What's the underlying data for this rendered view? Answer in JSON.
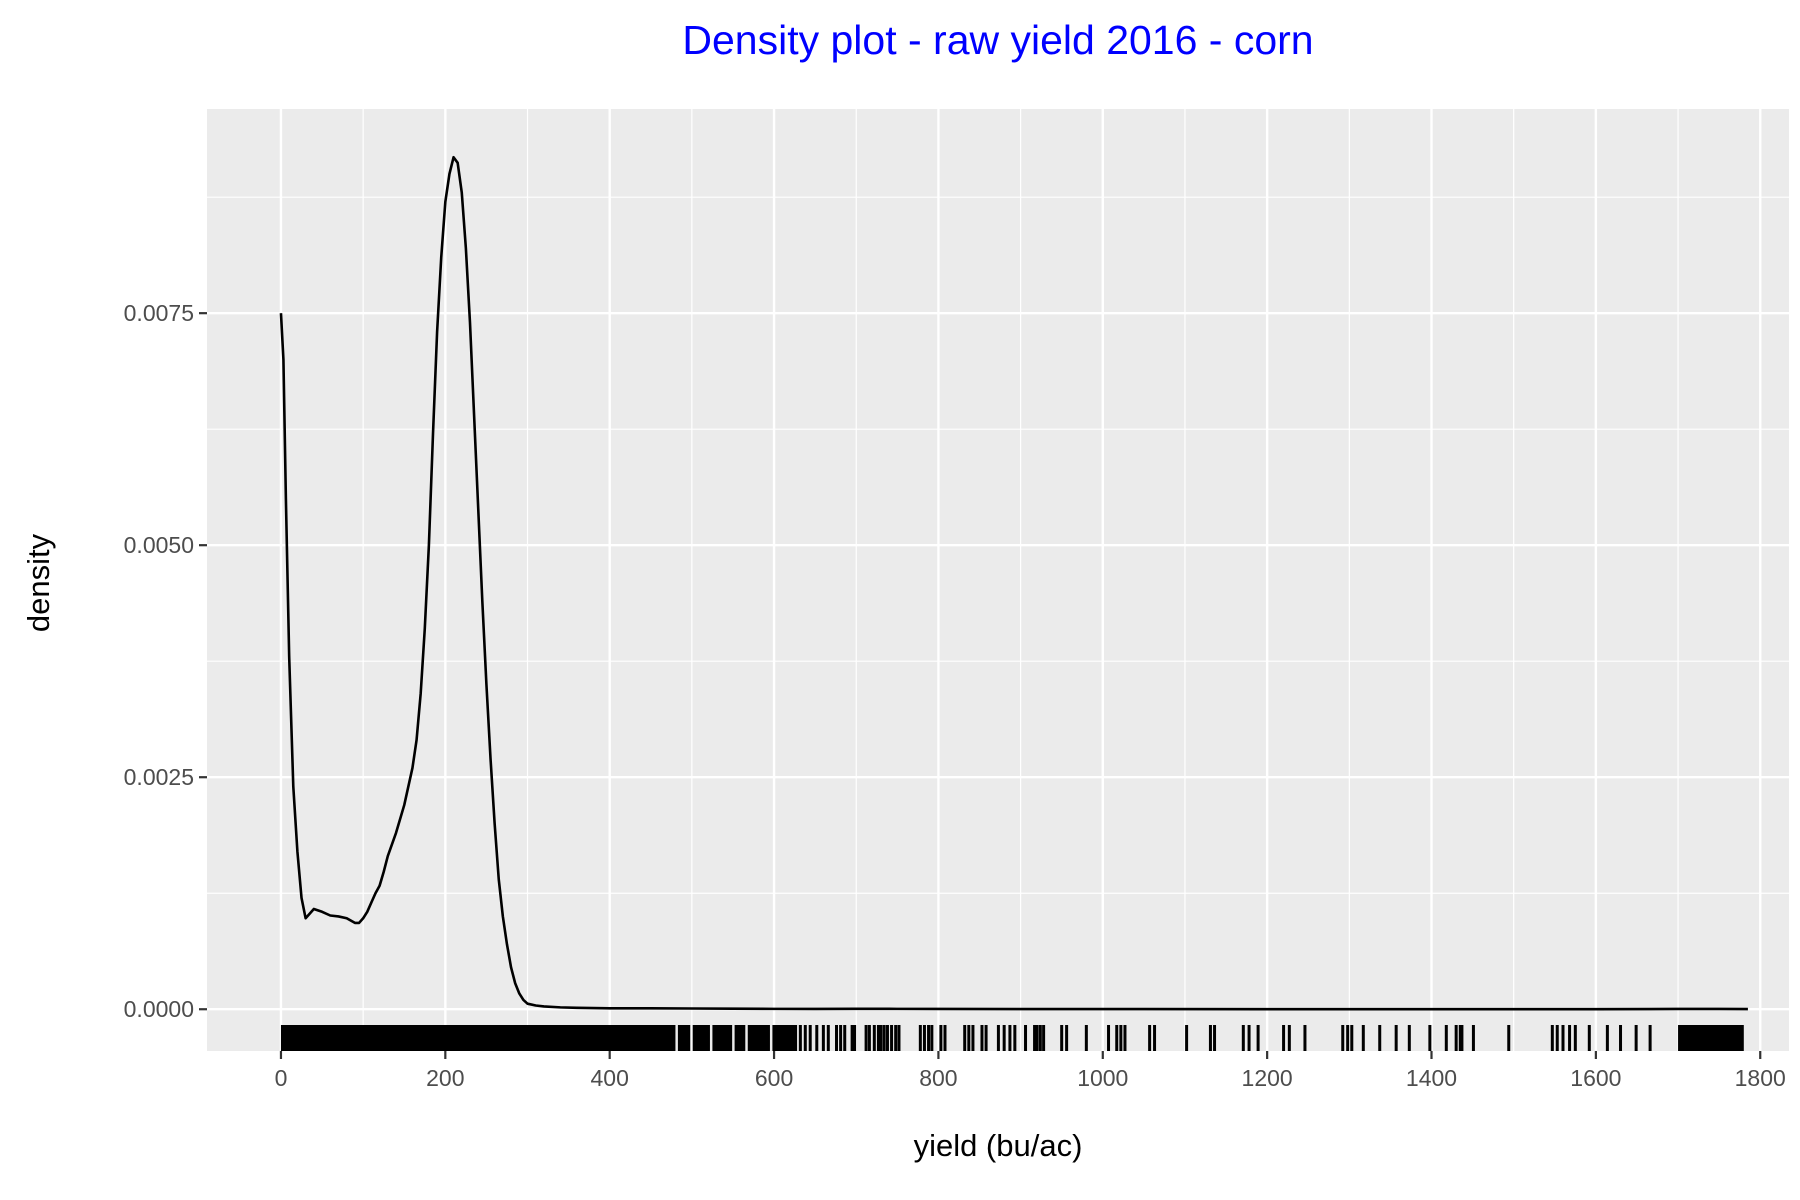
{
  "chart_data": {
    "type": "line",
    "title": "Density plot - raw yield 2016 - corn",
    "xlabel": "yield (bu/ac)",
    "ylabel": "density",
    "xlim": [
      -90,
      1835
    ],
    "ylim": [
      -0.00045,
      0.0097
    ],
    "x_ticks": [
      0,
      200,
      400,
      600,
      800,
      1000,
      1200,
      1400,
      1600,
      1800
    ],
    "x_tick_labels": [
      "0",
      "200",
      "400",
      "600",
      "800",
      "1000",
      "1200",
      "1400",
      "1600",
      "1800"
    ],
    "y_ticks": [
      0,
      0.0025,
      0.005,
      0.0075
    ],
    "y_tick_labels": [
      "0.0000",
      "0.0025",
      "0.0050",
      "0.0075"
    ],
    "y_minor_ticks": [
      0.00125,
      0.00375,
      0.00625,
      0.00875
    ],
    "grid": true,
    "colors": {
      "title": "#0000ff",
      "panel_background": "#ebebeb",
      "grid": "#ffffff",
      "line": "#000000",
      "rug": "#000000"
    },
    "series": [
      {
        "x": [
          0,
          3,
          6,
          10,
          15,
          20,
          25,
          30,
          35,
          40,
          50,
          60,
          70,
          80,
          90,
          95,
          100,
          105,
          110,
          115,
          120,
          125,
          130,
          140,
          150,
          160,
          165,
          170,
          175,
          180,
          185,
          190,
          195,
          200,
          205,
          210,
          215,
          220,
          225,
          230,
          235,
          240,
          245,
          250,
          255,
          260,
          265,
          270,
          275,
          280,
          285,
          290,
          295,
          300,
          310,
          320,
          340,
          360,
          400,
          450,
          500,
          550,
          600,
          650,
          700,
          750,
          800,
          900,
          1000,
          1200,
          1400,
          1600,
          1700,
          1750,
          1785
        ],
        "y": [
          0.0075,
          0.007,
          0.0055,
          0.0038,
          0.0024,
          0.0017,
          0.0012,
          0.00098,
          0.00103,
          0.00108,
          0.00105,
          0.00101,
          0.001,
          0.00098,
          0.00093,
          0.00093,
          0.00098,
          0.00105,
          0.00115,
          0.00125,
          0.00133,
          0.00148,
          0.00165,
          0.0019,
          0.0022,
          0.0026,
          0.0029,
          0.0034,
          0.0041,
          0.005,
          0.0062,
          0.0073,
          0.0081,
          0.0087,
          0.009,
          0.00918,
          0.00912,
          0.0088,
          0.0082,
          0.0074,
          0.0064,
          0.0054,
          0.0044,
          0.0035,
          0.0027,
          0.002,
          0.0014,
          0.001,
          0.0007,
          0.00045,
          0.00028,
          0.00017,
          0.0001,
          6e-05,
          4e-05,
          3e-05,
          2e-05,
          1.5e-05,
          1e-05,
          1e-05,
          8e-06,
          6e-06,
          4e-06,
          3e-06,
          5e-06,
          4e-06,
          3e-06,
          2e-06,
          2e-06,
          1e-06,
          1e-06,
          1e-06,
          3e-06,
          3e-06,
          2e-06
        ]
      }
    ],
    "rug": {
      "solid_ranges": [
        [
          0,
          480
        ],
        [
          483,
          498
        ],
        [
          501,
          522
        ],
        [
          525,
          549
        ],
        [
          552,
          565
        ],
        [
          568,
          595
        ],
        [
          598,
          628
        ],
        [
          1700,
          1780
        ]
      ],
      "ticks": [
        632,
        638,
        644,
        652,
        660,
        666,
        676,
        681,
        686,
        695,
        698,
        712,
        716,
        722,
        727,
        730,
        734,
        738,
        743,
        748,
        752,
        778,
        783,
        788,
        792,
        803,
        808,
        832,
        837,
        842,
        853,
        858,
        873,
        880,
        887,
        893,
        906,
        917,
        920,
        924,
        928,
        950,
        956,
        980,
        1007,
        1017,
        1022,
        1027,
        1057,
        1063,
        1102,
        1131,
        1136,
        1171,
        1178,
        1189,
        1220,
        1227,
        1246,
        1292,
        1298,
        1303,
        1317,
        1337,
        1357,
        1373,
        1398,
        1418,
        1430,
        1435,
        1437,
        1451,
        1494,
        1547,
        1553,
        1560,
        1568,
        1575,
        1592,
        1614,
        1630,
        1649,
        1666
      ]
    }
  }
}
